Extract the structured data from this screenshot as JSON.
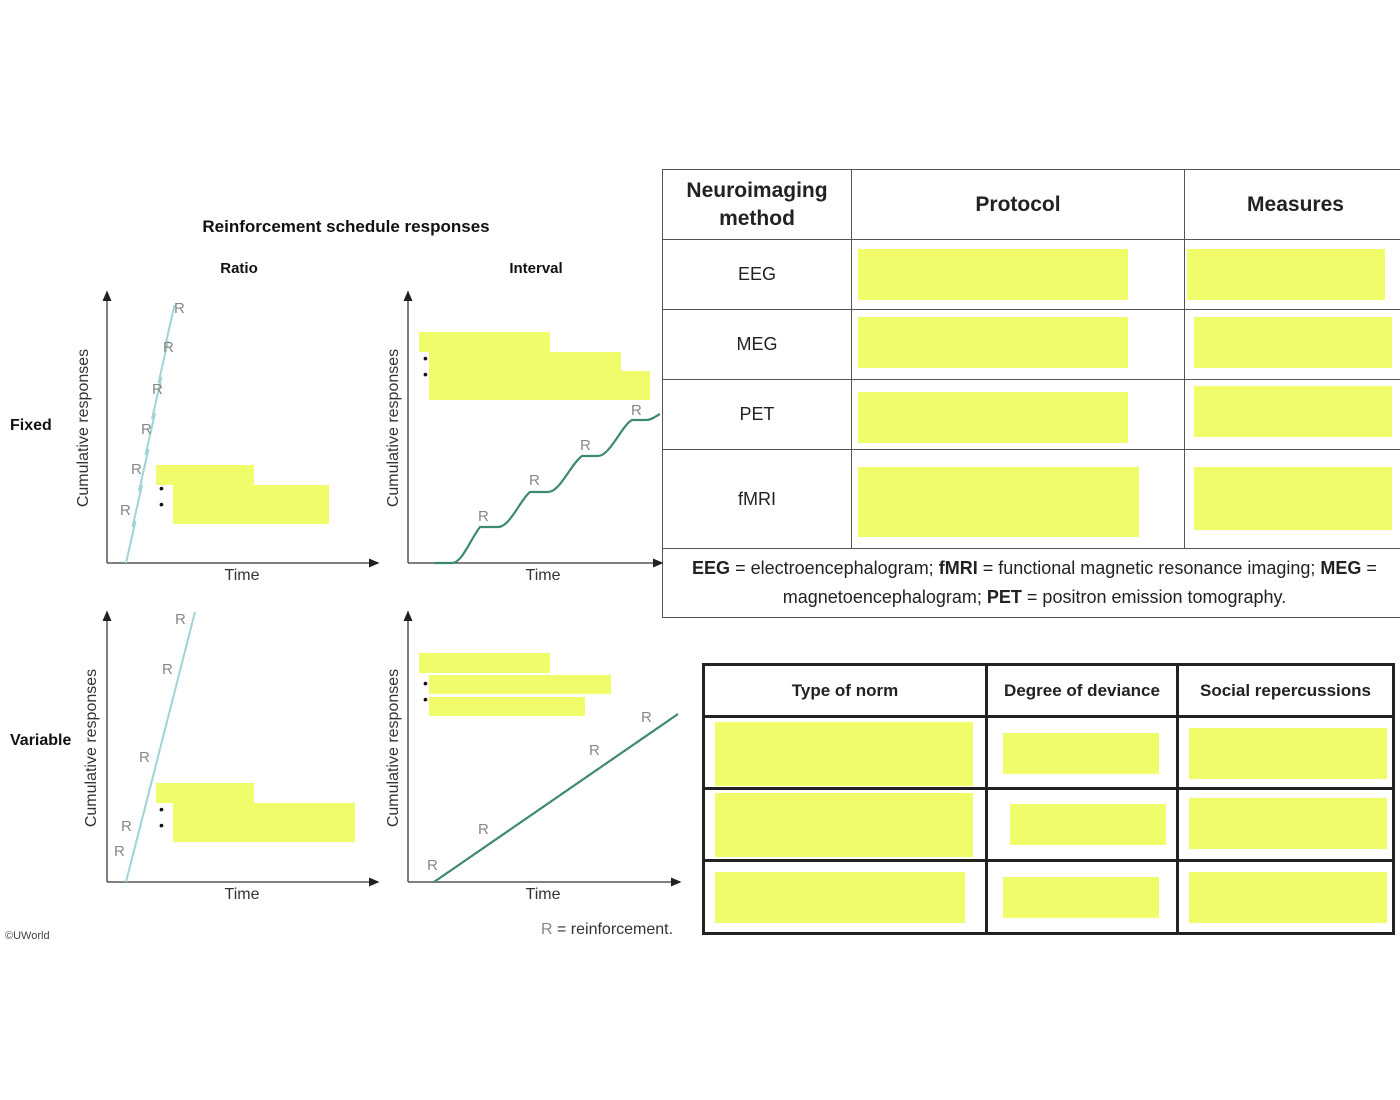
{
  "figure": {
    "title": "Reinforcement schedule responses",
    "col_headers": [
      "Ratio",
      "Interval"
    ],
    "row_headers": [
      "Fixed",
      "Variable"
    ],
    "y_axis_label": "Cumulative responses",
    "x_axis_label": "Time",
    "reinforcement_marker": "R",
    "legend": "= reinforcement.",
    "copyright": "©UWorld",
    "colors": {
      "ratio": "#9fd4d4",
      "interval": "#3d8a6e",
      "highlight": "#f0fc6a"
    }
  },
  "neuro_table": {
    "headers": [
      "Neuroimaging method",
      "Protocol",
      "Measures"
    ],
    "rows": [
      {
        "method": "EEG"
      },
      {
        "method": "MEG"
      },
      {
        "method": "PET"
      },
      {
        "method": "fMRI"
      }
    ],
    "footnote": {
      "parts": [
        {
          "b": "EEG",
          "t": " = electroencephalogram; "
        },
        {
          "b": "fMRI",
          "t": " = functional magnetic resonance imaging; "
        },
        {
          "b": "MEG",
          "t": " = magnetoencephalogram; "
        },
        {
          "b": "PET",
          "t": " = positron emission tomography."
        }
      ]
    }
  },
  "norm_table": {
    "headers": [
      "Type of norm",
      "Degree of deviance",
      "Social repercussions"
    ]
  }
}
